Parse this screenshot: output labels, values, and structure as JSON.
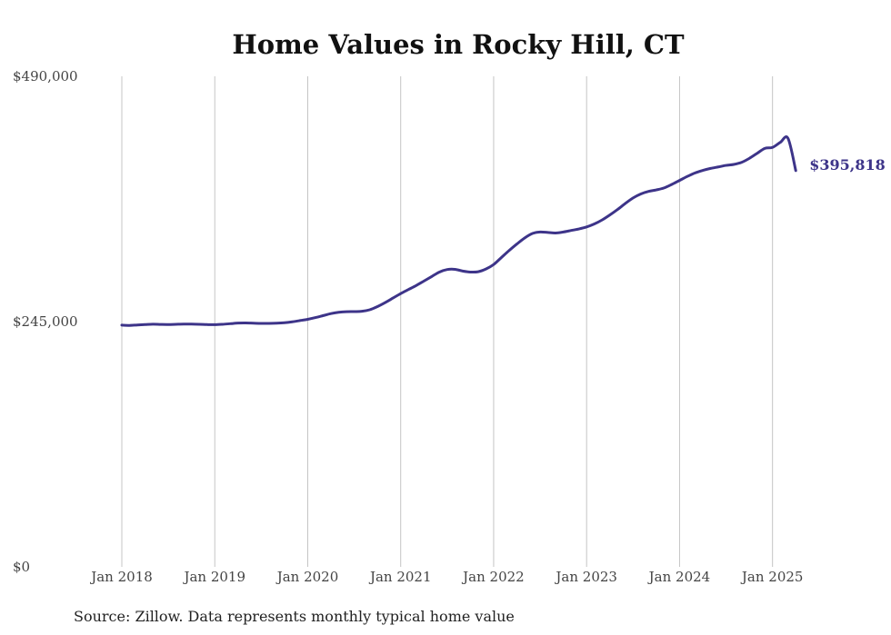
{
  "chart_data": {
    "type": "line",
    "title": "Home Values in Rocky Hill, CT",
    "source": "Source: Zillow. Data represents monthly typical home value",
    "line_color": "#3d3489",
    "grid": "vertical",
    "ylim": [
      0,
      490000
    ],
    "y_ticks": [
      0,
      245000,
      490000
    ],
    "y_tick_labels": [
      "$0",
      "$245,000",
      "$490,000"
    ],
    "x_ticks": [
      "2018-01",
      "2019-01",
      "2020-01",
      "2021-01",
      "2022-01",
      "2023-01",
      "2024-01",
      "2025-01"
    ],
    "x_tick_labels": [
      "Jan 2018",
      "Jan 2019",
      "Jan 2020",
      "Jan 2021",
      "Jan 2022",
      "Jan 2023",
      "Jan 2024",
      "Jan 2025"
    ],
    "end_label": "$395,818",
    "series": [
      {
        "x": [
          "2018-01",
          "2018-02",
          "2018-03",
          "2018-04",
          "2018-05",
          "2018-06",
          "2018-07",
          "2018-08",
          "2018-09",
          "2018-10",
          "2018-11",
          "2018-12",
          "2019-01",
          "2019-02",
          "2019-03",
          "2019-04",
          "2019-05",
          "2019-06",
          "2019-07",
          "2019-08",
          "2019-09",
          "2019-10",
          "2019-11",
          "2019-12",
          "2020-01",
          "2020-02",
          "2020-03",
          "2020-04",
          "2020-05",
          "2020-06",
          "2020-07",
          "2020-08",
          "2020-09",
          "2020-10",
          "2020-11",
          "2020-12",
          "2021-01",
          "2021-02",
          "2021-03",
          "2021-04",
          "2021-05",
          "2021-06",
          "2021-07",
          "2021-08",
          "2021-09",
          "2021-10",
          "2021-11",
          "2021-12",
          "2022-01",
          "2022-02",
          "2022-03",
          "2022-04",
          "2022-05",
          "2022-06",
          "2022-07",
          "2022-08",
          "2022-09",
          "2022-10",
          "2022-11",
          "2022-12",
          "2023-01",
          "2023-02",
          "2023-03",
          "2023-04",
          "2023-05",
          "2023-06",
          "2023-07",
          "2023-08",
          "2023-09",
          "2023-10",
          "2023-11",
          "2023-12",
          "2024-01",
          "2024-02",
          "2024-03",
          "2024-04",
          "2024-05",
          "2024-06",
          "2024-07",
          "2024-08",
          "2024-09",
          "2024-10",
          "2024-11",
          "2024-12",
          "2025-01",
          "2025-02",
          "2025-03",
          "2025-04"
        ],
        "values": [
          241500,
          241200,
          241600,
          242000,
          242400,
          242200,
          242100,
          242300,
          242500,
          242500,
          242300,
          242000,
          241900,
          242300,
          242900,
          243500,
          243600,
          243400,
          243200,
          243200,
          243400,
          243900,
          244800,
          246000,
          247300,
          249000,
          251000,
          253000,
          254300,
          254900,
          255000,
          255300,
          256800,
          260000,
          264000,
          268500,
          273000,
          277000,
          281000,
          285500,
          290000,
          294500,
          297000,
          297200,
          295500,
          294500,
          294800,
          297500,
          302000,
          309000,
          316000,
          322500,
          328500,
          333000,
          334500,
          334000,
          333500,
          334500,
          336000,
          337500,
          339500,
          342500,
          346500,
          351500,
          357000,
          363000,
          368500,
          372500,
          375000,
          376500,
          378500,
          382000,
          386000,
          390000,
          393500,
          396000,
          398000,
          399500,
          401000,
          402000,
          404000,
          408000,
          413000,
          418000,
          419000,
          424000,
          428000,
          395818
        ]
      }
    ]
  }
}
